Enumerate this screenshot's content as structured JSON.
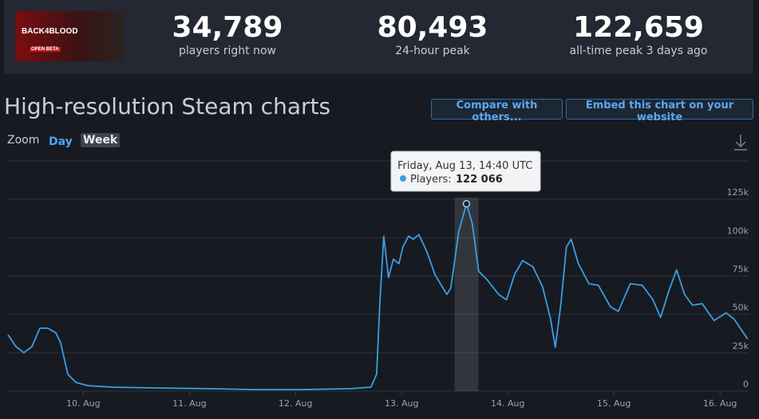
{
  "header": {
    "logo": {
      "title": "BACK4BLOOD",
      "badge": "OPEN BETA"
    },
    "stats": [
      {
        "value": "34,789",
        "label": "players right now"
      },
      {
        "value": "80,493",
        "label": "24-hour peak"
      },
      {
        "value": "122,659",
        "label": "all-time peak 3 days ago"
      }
    ]
  },
  "page_title": "High-resolution Steam charts",
  "buttons": [
    "Compare with others...",
    "Embed this chart on your website"
  ],
  "zoom": {
    "label": "Zoom",
    "options": [
      "Day",
      "Week"
    ]
  },
  "tooltip": {
    "title": "Friday, Aug 13, 14:40 UTC",
    "label": "Players:",
    "value": "122 066"
  },
  "chart_data": {
    "type": "line",
    "x": [
      9.29,
      9.365,
      9.44,
      9.516,
      9.591,
      9.666,
      9.741,
      9.786,
      9.854,
      9.929,
      10.042,
      10.267,
      10.719,
      11.17,
      11.621,
      12.072,
      12.523,
      12.711,
      12.764,
      12.794,
      12.831,
      12.876,
      12.922,
      12.974,
      13.012,
      13.065,
      13.11,
      13.162,
      13.237,
      13.313,
      13.425,
      13.463,
      13.538,
      13.611,
      13.666,
      13.726,
      13.801,
      13.914,
      13.989,
      14.064,
      14.14,
      14.237,
      14.328,
      14.403,
      14.448,
      14.501,
      14.553,
      14.598,
      14.666,
      14.764,
      14.854,
      14.967,
      15.042,
      15.155,
      15.267,
      15.365,
      15.44,
      15.516,
      15.591,
      15.666,
      15.741,
      15.832,
      15.944,
      16.057,
      16.132,
      16.26
    ],
    "series": [
      {
        "name": "Players",
        "color": "#3b9de3",
        "values": [
          36700,
          29000,
          25000,
          29000,
          41000,
          41000,
          38000,
          31600,
          11000,
          5700,
          3600,
          2600,
          2000,
          1600,
          1000,
          1000,
          1600,
          2600,
          11000,
          57000,
          101000,
          74000,
          86000,
          83000,
          94000,
          101000,
          99000,
          102000,
          91000,
          76000,
          63000,
          67000,
          104000,
          122066,
          109000,
          78000,
          73000,
          63000,
          59500,
          76000,
          85000,
          81000,
          68000,
          47000,
          28500,
          57000,
          94000,
          99000,
          83000,
          70000,
          69000,
          55000,
          52000,
          70000,
          69000,
          60000,
          48000,
          65000,
          79000,
          63000,
          56000,
          57000,
          46000,
          51000,
          47000,
          34000
        ]
      }
    ],
    "xlim": [
      9.29,
      16.27
    ],
    "xticks": [
      {
        "value": 10,
        "label": "10. Aug"
      },
      {
        "value": 11,
        "label": "11. Aug"
      },
      {
        "value": 12,
        "label": "12. Aug"
      },
      {
        "value": 13,
        "label": "13. Aug"
      },
      {
        "value": 14,
        "label": "14. Aug"
      },
      {
        "value": 15,
        "label": "15. Aug"
      },
      {
        "value": 16,
        "label": "16. Aug"
      }
    ],
    "ylim": [
      0,
      150000
    ],
    "yticks": [
      0,
      {
        "value": 25000,
        "label": "25k"
      },
      {
        "value": 50000,
        "label": "50k"
      },
      {
        "value": 75000,
        "label": "75k"
      },
      {
        "value": 100000,
        "label": "100k"
      },
      {
        "value": 125000,
        "label": "125k"
      }
    ],
    "grid": true
  }
}
